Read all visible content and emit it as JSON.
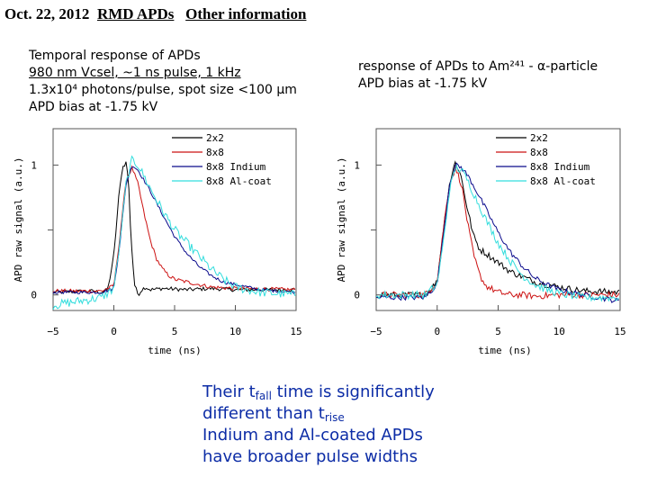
{
  "header": {
    "date": "Oct. 22, 2012",
    "topic": "RMD APDs",
    "subtopic": "Other information"
  },
  "left_panel": {
    "lines": [
      "Temporal response of APDs",
      "980 nm Vcsel, ~1 ns pulse, 1 kHz",
      "1.3x10⁴ photons/pulse, spot size <100 µm",
      "APD bias at -1.75 kV"
    ]
  },
  "right_panel": {
    "lines": [
      "response of APDs to Am²⁴¹ - α-particle",
      "APD bias at -1.75 kV"
    ]
  },
  "conclusion": {
    "line1_pre": "Their t",
    "line1_sub": "fall",
    "line1_post": " time is significantly",
    "line2_pre": "different than t",
    "line2_sub": "rise",
    "line3": "Indium and Al-coated APDs",
    "line4": "have broader pulse widths"
  },
  "colors": {
    "2x2": "#000000",
    "8x8": "#cc1111",
    "8x8 Indium": "#0a0a8c",
    "8x8 Al-coat": "#33dddd",
    "conclusion": "#0c2ca6"
  },
  "chart_data": [
    {
      "type": "line",
      "title": "Temporal response of APDs",
      "xlabel": "time (ns)",
      "ylabel": "APD raw signal (a.u.)",
      "xlim": [
        -5,
        15
      ],
      "ylim": [
        -0.12,
        1.28
      ],
      "xticks": [
        -5,
        0,
        5,
        10,
        15
      ],
      "yticks": [
        0,
        1
      ],
      "yminor": [
        0.5
      ],
      "legend_position": "top-right",
      "series": [
        {
          "name": "2x2",
          "noise": 0.015,
          "x": [
            -5,
            -2,
            -1,
            -0.5,
            0,
            0.4,
            0.7,
            1.0,
            1.2,
            1.4,
            1.7,
            2.0,
            2.3,
            2.6,
            3.0,
            4.0,
            6.0,
            8.0,
            10.0,
            12.0,
            15.0
          ],
          "y": [
            0.02,
            0.03,
            0.02,
            0.04,
            0.3,
            0.75,
            0.98,
            1.02,
            0.9,
            0.45,
            0.08,
            0.0,
            0.04,
            0.06,
            0.04,
            0.05,
            0.04,
            0.05,
            0.04,
            0.04,
            0.04
          ]
        },
        {
          "name": "8x8",
          "noise": 0.015,
          "x": [
            -5,
            -1,
            0,
            0.5,
            1.0,
            1.5,
            2.0,
            2.5,
            3.0,
            3.5,
            4.0,
            4.5,
            5.0,
            6.0,
            7.0,
            8.0,
            10.0,
            15.0
          ],
          "y": [
            0.03,
            0.03,
            0.07,
            0.45,
            0.88,
            0.98,
            0.85,
            0.62,
            0.42,
            0.28,
            0.2,
            0.15,
            0.12,
            0.1,
            0.08,
            0.06,
            0.05,
            0.04
          ]
        },
        {
          "name": "8x8 Indium",
          "noise": 0.012,
          "x": [
            -5,
            -1,
            0,
            0.5,
            1.0,
            1.5,
            2.0,
            3.0,
            4.0,
            5.0,
            6.0,
            7.0,
            8.0,
            9.0,
            10.0,
            11.0,
            12.0,
            15.0
          ],
          "y": [
            0.02,
            0.02,
            0.05,
            0.4,
            0.85,
            1.0,
            0.96,
            0.8,
            0.62,
            0.45,
            0.32,
            0.22,
            0.15,
            0.1,
            0.08,
            0.06,
            0.04,
            0.02
          ]
        },
        {
          "name": "8x8 Al-coat",
          "noise": 0.035,
          "x": [
            -5,
            -1,
            0,
            0.5,
            1.0,
            1.5,
            2.0,
            3.0,
            4.0,
            5.0,
            6.0,
            7.0,
            8.0,
            9.0,
            10.0,
            12.0,
            15.0
          ],
          "y": [
            -0.08,
            -0.02,
            0.05,
            0.4,
            0.85,
            1.04,
            1.0,
            0.82,
            0.65,
            0.5,
            0.4,
            0.3,
            0.2,
            0.12,
            0.06,
            0.02,
            0.0
          ]
        }
      ]
    },
    {
      "type": "line",
      "title": "response of APDs to Am241 - alpha-particle",
      "xlabel": "time (ns)",
      "ylabel": "APD raw signal (a.u.)",
      "xlim": [
        -5,
        15
      ],
      "ylim": [
        -0.12,
        1.28
      ],
      "xticks": [
        -5,
        0,
        5,
        10,
        15
      ],
      "yticks": [
        0,
        1
      ],
      "yminor": [
        0.5
      ],
      "legend_position": "top-right",
      "series": [
        {
          "name": "2x2",
          "noise": 0.025,
          "x": [
            -5,
            -1,
            0,
            0.5,
            1.0,
            1.5,
            2.0,
            2.5,
            3.0,
            3.5,
            4.0,
            5.0,
            6.0,
            7.0,
            8.0,
            9.0,
            10.0,
            12.0,
            15.0
          ],
          "y": [
            0.0,
            0.0,
            0.1,
            0.5,
            0.85,
            1.03,
            0.9,
            0.65,
            0.45,
            0.35,
            0.32,
            0.25,
            0.18,
            0.14,
            0.1,
            0.08,
            0.06,
            0.03,
            0.02
          ]
        },
        {
          "name": "8x8",
          "noise": 0.025,
          "x": [
            -5,
            -1,
            0,
            0.5,
            1.0,
            1.5,
            2.0,
            2.5,
            3.0,
            3.5,
            4.0,
            5.0,
            6.0,
            7.0,
            8.0,
            10.0,
            12.0,
            15.0
          ],
          "y": [
            0.0,
            0.0,
            0.1,
            0.5,
            0.85,
            0.98,
            0.85,
            0.55,
            0.3,
            0.15,
            0.07,
            0.02,
            0.0,
            0.0,
            -0.01,
            0.0,
            0.0,
            0.0
          ]
        },
        {
          "name": "8x8 Indium",
          "noise": 0.02,
          "x": [
            -5,
            -1,
            0,
            0.5,
            1.0,
            1.5,
            2.0,
            2.5,
            3.0,
            4.0,
            5.0,
            6.0,
            7.0,
            8.0,
            9.0,
            10.0,
            11.0,
            12.0,
            15.0
          ],
          "y": [
            -0.02,
            -0.02,
            0.08,
            0.45,
            0.85,
            1.0,
            0.98,
            0.92,
            0.84,
            0.66,
            0.48,
            0.33,
            0.22,
            0.13,
            0.08,
            0.04,
            0.02,
            0.0,
            -0.05
          ]
        },
        {
          "name": "8x8 Al-coat",
          "noise": 0.03,
          "x": [
            -5,
            -1,
            0,
            0.5,
            1.0,
            1.5,
            2.0,
            2.5,
            3.0,
            4.0,
            5.0,
            6.0,
            7.0,
            8.0,
            9.0,
            10.0,
            12.0,
            15.0
          ],
          "y": [
            0.0,
            0.0,
            0.08,
            0.4,
            0.8,
            0.98,
            0.96,
            0.88,
            0.78,
            0.58,
            0.4,
            0.26,
            0.15,
            0.08,
            0.04,
            0.01,
            -0.02,
            -0.02
          ]
        }
      ]
    }
  ]
}
